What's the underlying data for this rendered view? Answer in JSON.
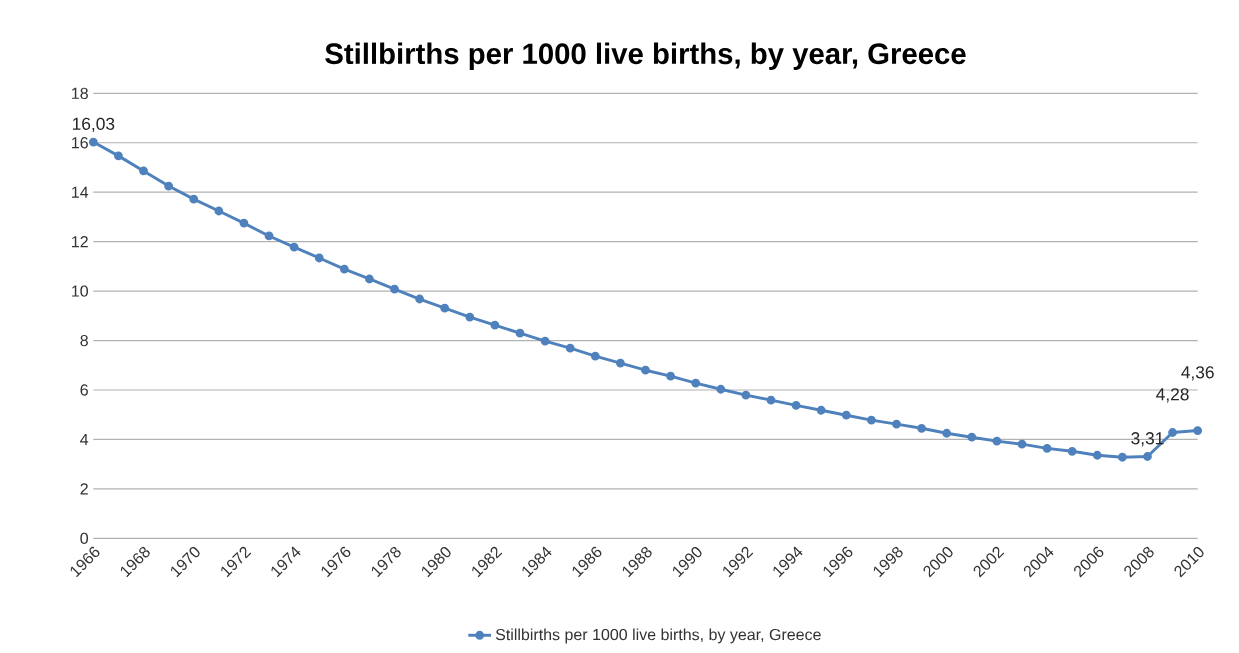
{
  "chart_data": {
    "type": "line",
    "title": "Stillbirths per 1000 live births, by year, Greece",
    "x": [
      1966,
      1967,
      1968,
      1969,
      1970,
      1971,
      1972,
      1973,
      1974,
      1975,
      1976,
      1977,
      1978,
      1979,
      1980,
      1981,
      1982,
      1983,
      1984,
      1985,
      1986,
      1987,
      1988,
      1989,
      1990,
      1991,
      1992,
      1993,
      1994,
      1995,
      1996,
      1997,
      1998,
      1999,
      2000,
      2001,
      2002,
      2003,
      2004,
      2005,
      2006,
      2007,
      2008,
      2009,
      2010
    ],
    "series": [
      {
        "name": "Stillbirths per 1000 live births, by year, Greece",
        "color": "#4f81bd",
        "values": [
          16.03,
          15.47,
          14.86,
          14.25,
          13.72,
          13.24,
          12.75,
          12.23,
          11.78,
          11.34,
          10.89,
          10.49,
          10.08,
          9.68,
          9.31,
          8.95,
          8.62,
          8.3,
          7.98,
          7.69,
          7.37,
          7.09,
          6.8,
          6.56,
          6.28,
          6.03,
          5.79,
          5.59,
          5.38,
          5.18,
          4.98,
          4.78,
          4.62,
          4.45,
          4.25,
          4.09,
          3.93,
          3.81,
          3.64,
          3.52,
          3.36,
          3.28,
          3.31,
          4.28,
          4.36
        ],
        "value_labels": [
          "16,03",
          null,
          null,
          null,
          null,
          null,
          null,
          null,
          null,
          null,
          null,
          null,
          null,
          null,
          null,
          null,
          null,
          null,
          null,
          null,
          null,
          null,
          null,
          null,
          null,
          null,
          null,
          null,
          null,
          null,
          null,
          null,
          null,
          null,
          null,
          null,
          null,
          null,
          null,
          null,
          null,
          null,
          "3,31",
          "4,28",
          "4,36"
        ]
      }
    ],
    "xlim": [
      1966,
      2010
    ],
    "xticks": [
      1966,
      1968,
      1970,
      1972,
      1974,
      1976,
      1978,
      1980,
      1982,
      1984,
      1986,
      1988,
      1990,
      1992,
      1994,
      1996,
      1998,
      2000,
      2002,
      2004,
      2006,
      2008,
      2010
    ],
    "ylim": [
      0,
      18
    ],
    "yticks": [
      0,
      2,
      4,
      6,
      8,
      10,
      12,
      14,
      16,
      18
    ],
    "grid": "y",
    "legend": "bottom",
    "marker": "circle",
    "line_style": "solid"
  }
}
